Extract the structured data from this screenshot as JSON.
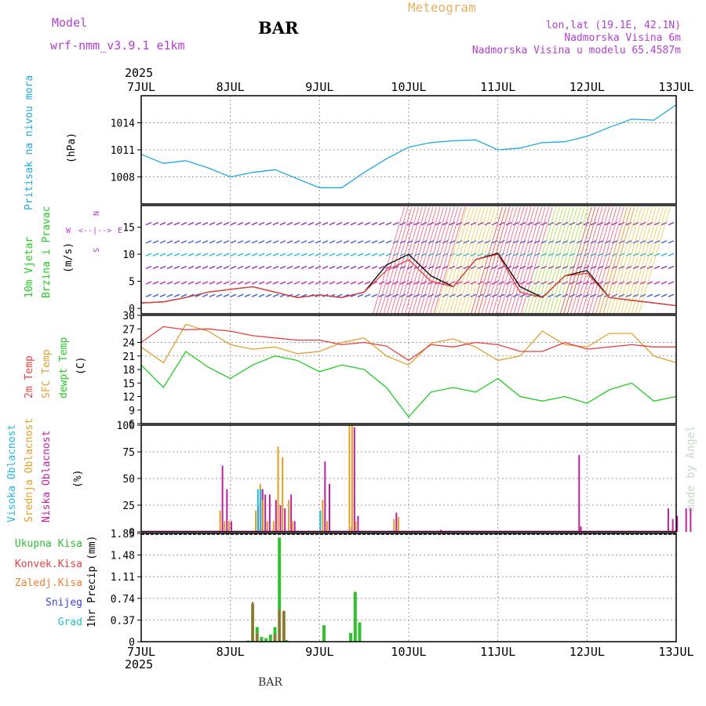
{
  "header": {
    "model_label": "Model",
    "model_name": "wrf-nmm_v3.9.1 e1km",
    "station": "BAR",
    "product": "Meteogram",
    "lonlat": "lon,lat (19.1E, 42.1N)",
    "altitude": "Nadmorska Visina 6m",
    "model_altitude": "Nadmorska Visina u modelu 65.4587m",
    "year": "2025",
    "footer_station": "BAR",
    "watermark": "made by Angel"
  },
  "colors": {
    "pressure": "#1fa8e0",
    "temp2m": "#e84040",
    "sfc": "#e0a030",
    "dewpt": "#20cc20",
    "high_cloud": "#20b8e0",
    "mid_cloud": "#e0a020",
    "low_cloud": "#c020a0",
    "total_precip": "#30c030",
    "conv_precip": "#e84040",
    "freezing": "#f08030",
    "snow": "#4040e0",
    "hail": "#20c0c0",
    "purple_text": "#b040d0",
    "orange_text": "#e8a840"
  },
  "time_axis": {
    "labels": [
      "7JUL",
      "8JUL",
      "9JUL",
      "10JUL",
      "11JUL",
      "12JUL",
      "13JUL"
    ],
    "year": "2025"
  },
  "panels": {
    "pressure": {
      "ylabel_main": "Pritisak na nivou mora",
      "unit": "(hPa)"
    },
    "wind": {
      "ylabel_1": "10m Vjetar",
      "ylabel_2": "Brzina i Pravac",
      "unit": "(m/s)",
      "compass_w": "W",
      "compass_e": "E",
      "compass_n": "N",
      "compass_s": "S"
    },
    "temp": {
      "ylabel_1": "2m Temp",
      "ylabel_2": "SFC Temp",
      "ylabel_3": "dewpt Temp",
      "unit": "(C)"
    },
    "cloud": {
      "ylabel_1": "Visoka Oblacnost",
      "ylabel_2": "Srednja Oblacnost",
      "ylabel_3": "Niska Oblacnost",
      "unit": "(%)"
    },
    "precip": {
      "ylabel": "1hr Precip (mm)",
      "legend": [
        "Ukupna Kisa",
        "Konvek.Kisa",
        "Zaledj.Kisa",
        "Snijeg",
        "Grad"
      ]
    }
  },
  "chart_data": [
    {
      "type": "line",
      "title": "",
      "ylabel": "Pritisak na nivou mora (hPa)",
      "yticks": [
        "1008",
        "1011",
        "1014"
      ],
      "ylim": [
        1005,
        1017
      ],
      "x_days": [
        0,
        0.25,
        0.5,
        0.75,
        1,
        1.25,
        1.5,
        1.75,
        2,
        2.25,
        2.5,
        2.75,
        3,
        3.25,
        3.5,
        3.75,
        4,
        4.25,
        4.5,
        4.75,
        5,
        5.25,
        5.5,
        5.75,
        6
      ],
      "series": [
        {
          "values": [
            1010.5,
            1009.5,
            1009.8,
            1009,
            1008,
            1008.5,
            1008.8,
            1007.8,
            1006.8,
            1006.8,
            1008.5,
            1010,
            1011.3,
            1011.8,
            1012,
            1012.1,
            1011,
            1011.2,
            1011.8,
            1011.9,
            1012.5,
            1013.5,
            1014.4,
            1014.3,
            1016
          ]
        }
      ]
    },
    {
      "type": "line",
      "title": "",
      "ylabel": "10m Vjetar Brzina i Pravac (m/s)",
      "yticks": [
        "0",
        "5",
        "10",
        "15"
      ],
      "ylim": [
        -1,
        19
      ],
      "x_days": [
        0,
        0.25,
        0.5,
        0.75,
        1,
        1.25,
        1.5,
        1.75,
        2,
        2.25,
        2.5,
        2.75,
        3,
        3.25,
        3.5,
        3.75,
        4,
        4.25,
        4.5,
        4.75,
        5,
        5.25,
        5.5,
        5.75,
        6
      ],
      "series": [
        {
          "values": [
            1,
            1.2,
            2,
            3,
            3.5,
            4,
            3,
            2,
            2.5,
            2,
            3,
            8,
            10,
            6,
            4,
            9,
            10.2,
            4,
            2,
            6,
            7,
            2,
            1.5,
            1,
            0.5
          ]
        },
        {
          "values": [
            1,
            1.2,
            2,
            3,
            3.5,
            4,
            3,
            2,
            2.5,
            2,
            3,
            7,
            9,
            5,
            4,
            9,
            10,
            3,
            2,
            6,
            6.5,
            2,
            1.5,
            1,
            0.5
          ]
        }
      ]
    },
    {
      "type": "line",
      "title": "",
      "ylabel": "Temp (C)",
      "yticks": [
        "6",
        "9",
        "12",
        "15",
        "18",
        "21",
        "24",
        "27",
        "30"
      ],
      "ylim": [
        6,
        30
      ],
      "x_days": [
        0,
        0.25,
        0.5,
        0.75,
        1,
        1.25,
        1.5,
        1.75,
        2,
        2.25,
        2.5,
        2.75,
        3,
        3.25,
        3.5,
        3.75,
        4,
        4.25,
        4.5,
        4.75,
        5,
        5.25,
        5.5,
        5.75,
        6
      ],
      "series": [
        {
          "name": "2m Temp",
          "values": [
            24,
            27.5,
            26.8,
            27,
            26.5,
            25.5,
            25,
            24.5,
            24.5,
            23.5,
            24,
            23.2,
            20,
            23.5,
            23,
            24,
            23.5,
            22,
            22,
            24,
            22.5,
            23,
            23.5,
            23,
            23
          ]
        },
        {
          "name": "SFC Temp",
          "values": [
            23,
            19.5,
            28,
            26.5,
            23.5,
            22.5,
            23,
            21.5,
            22,
            24,
            25,
            21,
            19,
            23.8,
            24.8,
            23,
            20,
            21,
            26.5,
            23.5,
            23,
            26,
            26,
            21,
            19.5
          ]
        },
        {
          "name": "dewpt Temp",
          "values": [
            19,
            14,
            22,
            18.5,
            16,
            19,
            21,
            20,
            17.5,
            19,
            18,
            14,
            7.5,
            13,
            14,
            13,
            16,
            12,
            11,
            12,
            10.5,
            13.5,
            15,
            11,
            12
          ]
        }
      ]
    },
    {
      "type": "bar",
      "title": "",
      "ylabel": "Oblacnost (%)",
      "yticks": [
        "0",
        "25",
        "50",
        "75",
        "100"
      ],
      "ylim": [
        0,
        100
      ],
      "x_days": [
        0.85,
        0.9,
        0.95,
        1.25,
        1.3,
        1.33,
        1.38,
        1.45,
        1.5,
        1.55,
        1.62,
        1.66,
        2.0,
        2.05,
        2.3,
        2.33,
        2.37,
        2.8,
        2.85,
        3.3,
        4.85,
        4.87,
        5.85,
        5.9,
        5.95,
        6.05,
        6.1
      ],
      "series": [
        {
          "name": "Visoka Oblacnost",
          "values": [
            0,
            0,
            0,
            0,
            40,
            40,
            0,
            0,
            0,
            0,
            0,
            0,
            20,
            0,
            0,
            0,
            0,
            0,
            0,
            0,
            0,
            0,
            0,
            0,
            0,
            0,
            0
          ]
        },
        {
          "name": "Srednja Oblacnost",
          "values": [
            20,
            10,
            10,
            20,
            45,
            30,
            10,
            10,
            80,
            70,
            30,
            10,
            30,
            10,
            100,
            100,
            10,
            12,
            14,
            0,
            0,
            0,
            0,
            0,
            0,
            0,
            0
          ]
        },
        {
          "name": "Niska Oblacnost",
          "values": [
            62,
            40,
            10,
            24,
            40,
            35,
            35,
            30,
            25,
            22,
            35,
            10,
            66,
            45,
            5,
            98,
            15,
            18,
            0,
            2,
            72,
            5,
            22,
            12,
            15,
            22,
            22
          ]
        }
      ]
    },
    {
      "type": "bar",
      "title": "",
      "ylabel": "1hr Precip (mm)",
      "yticks": [
        "0",
        "0.37",
        "0.74",
        "1.11",
        "1.48",
        "1.85"
      ],
      "ylim": [
        0,
        1.85
      ],
      "x_days": [
        1.2,
        1.25,
        1.3,
        1.35,
        1.4,
        1.45,
        1.5,
        1.55,
        1.6,
        1.63,
        2.05,
        2.35,
        2.4,
        2.45
      ],
      "series": [
        {
          "name": "Ukupna Kisa",
          "values": [
            0.02,
            0.65,
            0.25,
            0.08,
            0.06,
            0.12,
            0.25,
            1.78,
            0.52,
            0.03,
            0.28,
            0.15,
            0.85,
            0.33
          ]
        },
        {
          "name": "Konvek.Kisa",
          "values": [
            0,
            0.68,
            0.14,
            0,
            0,
            0,
            0.12,
            0.55,
            0.53,
            0,
            0,
            0,
            0,
            0
          ]
        }
      ]
    }
  ]
}
